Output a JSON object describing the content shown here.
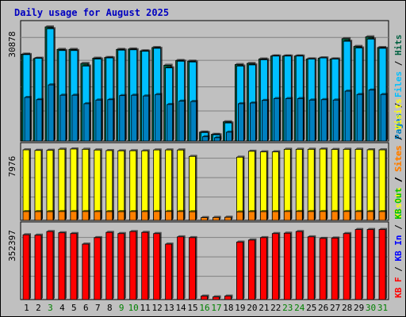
{
  "chart_data": {
    "type": "bar",
    "title": "Daily usage for August 2025",
    "categories": [
      "1",
      "2",
      "3",
      "4",
      "5",
      "6",
      "7",
      "8",
      "9",
      "10",
      "11",
      "12",
      "13",
      "14",
      "15",
      "16",
      "17",
      "18",
      "19",
      "20",
      "21",
      "22",
      "23",
      "24",
      "25",
      "26",
      "27",
      "28",
      "29",
      "30",
      "31"
    ],
    "weekend_days": [
      "3",
      "9",
      "10",
      "16",
      "17",
      "23",
      "24",
      "30",
      "31"
    ],
    "colors": {
      "title": "#0000c0",
      "hits": "#006040",
      "files": "#00c0ff",
      "pages": "#0080c0",
      "visits": "#ffff00",
      "sites": "#ff8000",
      "kb_out": "#00c000",
      "kb_in": "#0000ff",
      "kb_f": "#ff0000",
      "weekday_label": "#000000",
      "weekend_label": "#008000"
    },
    "panels": [
      {
        "name": "hits-files-pages",
        "max_label": "30878",
        "ymax": 30878,
        "legend": [
          "Pages",
          "Files",
          "Hits"
        ],
        "series": [
          {
            "name": "Hits",
            "color": "#006040",
            "values": [
              23500,
              22300,
              30878,
              24800,
              24800,
              21000,
              22400,
              22600,
              24800,
              24900,
              24400,
              25300,
              20500,
              21800,
              21600,
              2400,
              1800,
              5200,
              20700,
              21000,
              22200,
              23000,
              23000,
              23000,
              22200,
              22400,
              22200,
              27700,
              25600,
              28200,
              25300
            ]
          },
          {
            "name": "Files",
            "color": "#00c0ff",
            "values": [
              23400,
              22400,
              30400,
              24500,
              24500,
              20300,
              22200,
              22500,
              24600,
              24700,
              24300,
              25100,
              19800,
              21600,
              21400,
              2300,
              1700,
              4900,
              20300,
              20600,
              22000,
              23000,
              23000,
              23000,
              22200,
              22500,
              22200,
              27000,
              25200,
              27600,
              25100
            ]
          },
          {
            "name": "Pages",
            "color": "#0080c0",
            "values": [
              11800,
              11200,
              15200,
              12400,
              12400,
              10100,
              11100,
              11200,
              12300,
              12400,
              12200,
              12600,
              9900,
              10800,
              10700,
              1200,
              900,
              2400,
              10100,
              10300,
              11000,
              11500,
              11500,
              11500,
              11100,
              11200,
              11100,
              13500,
              12600,
              13800,
              12600
            ]
          }
        ]
      },
      {
        "name": "visits-sites",
        "max_label": "7976",
        "ymax": 7976,
        "legend": [
          "Visits",
          "Sites"
        ],
        "series": [
          {
            "name": "Visits",
            "color": "#ffff00",
            "values": [
              7880,
              7820,
              7830,
              7950,
              7976,
              7940,
              7860,
              7800,
              7770,
              7780,
              7770,
              7870,
              7870,
              7860,
              7150,
              0,
              0,
              0,
              7060,
              7720,
              7650,
              7650,
              7940,
              7940,
              7940,
              7970,
              7920,
              7940,
              7940,
              7890,
              7880
            ]
          },
          {
            "name": "Sites",
            "color": "#ff8000",
            "values": [
              980,
              975,
              970,
              985,
              990,
              985,
              980,
              975,
              970,
              980,
              980,
              990,
              990,
              985,
              960,
              300,
              320,
              340,
              945,
              975,
              970,
              975,
              985,
              990,
              985,
              990,
              985,
              990,
              985,
              985,
              980
            ]
          }
        ]
      },
      {
        "name": "kb",
        "max_label": "352397",
        "ymax": 352397,
        "legend": [
          "KB F",
          "KB In",
          "KB Out",
          "Sites",
          "Visits"
        ],
        "legend_colors": [
          "#ff0000",
          "#0000ff",
          "#00c000",
          "#ff8000",
          "#ffff00"
        ],
        "series": [
          {
            "name": "KB F",
            "color": "#ff0000",
            "values": [
              320000,
              318000,
              336000,
              330000,
              326000,
              274000,
              306000,
              332000,
              326000,
              336000,
              332000,
              326000,
              274000,
              310000,
              306000,
              17000,
              13000,
              17000,
              284000,
              294000,
              306000,
              326000,
              328000,
              336000,
              310000,
              302000,
              304000,
              326000,
              346000,
              346000,
              346000
            ]
          }
        ]
      }
    ]
  }
}
